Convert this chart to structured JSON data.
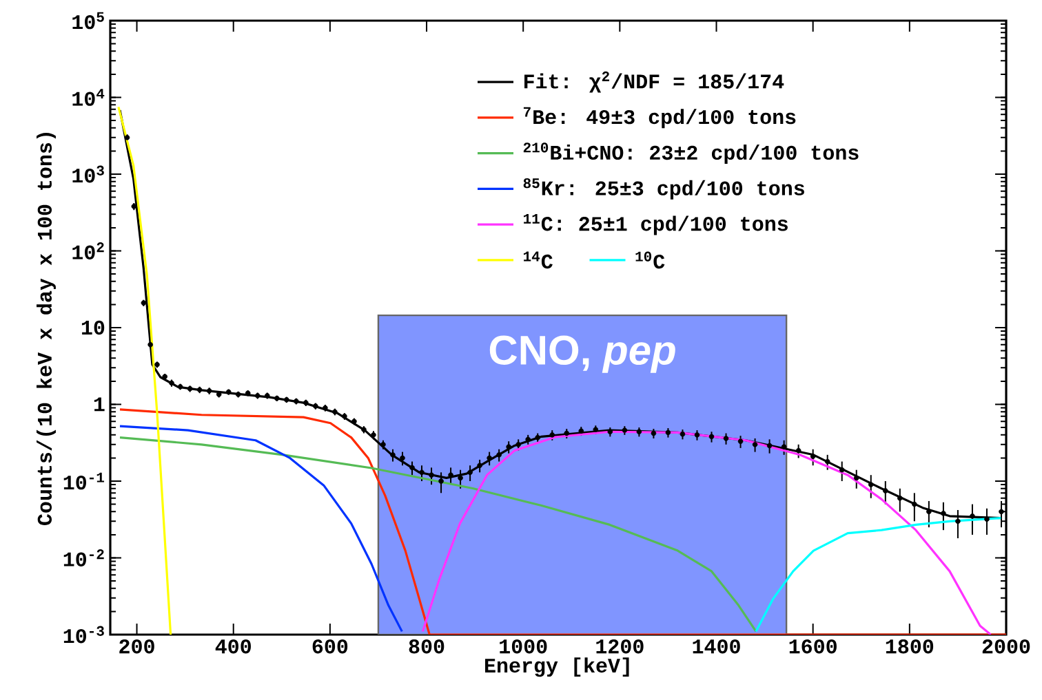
{
  "chart_data": {
    "type": "line",
    "xlabel": "Energy [keV]",
    "ylabel": "Counts/(10 keV x day x 100 tons)",
    "log": "y",
    "xlim": [
      145,
      2000
    ],
    "ylim": [
      0.001,
      100000
    ],
    "xticks": [
      200,
      400,
      600,
      800,
      1000,
      1200,
      1400,
      1600,
      1800,
      2000
    ],
    "yticks": [
      {
        "value": 0.001,
        "label": "10$^{-3}$"
      },
      {
        "value": 0.01,
        "label": "10$^{-2}$"
      },
      {
        "value": 0.1,
        "label": "10$^{-1}$"
      },
      1,
      10,
      {
        "value": 100,
        "label": "10$^{2}$"
      },
      {
        "value": 1000,
        "label": "10$^{3}$"
      },
      {
        "value": 10000,
        "label": "10$^{4}$"
      },
      {
        "value": 100000,
        "label": "10$^{5}$"
      }
    ],
    "legend": "top right",
    "grid": false,
    "bands": [
      {
        "axis": "x",
        "from": 700,
        "to": 1545,
        "label": "CNO, *pep*",
        "color": "#8095ff"
      }
    ],
    "series": [
      {
        "type": "scatter",
        "color": "#000000",
        "x": [
          180,
          194,
          214,
          228,
          242,
          258,
          272,
          290,
          310,
          330,
          350,
          370,
          390,
          410,
          430,
          450,
          470,
          490,
          510,
          530,
          550,
          570,
          590,
          610,
          630,
          650,
          670,
          690,
          710,
          730,
          750,
          770,
          790,
          810,
          830,
          850,
          870,
          890,
          910,
          930,
          950,
          970,
          990,
          1010,
          1030,
          1060,
          1090,
          1120,
          1150,
          1180,
          1210,
          1240,
          1270,
          1300,
          1330,
          1360,
          1390,
          1420,
          1450,
          1480,
          1510,
          1540,
          1570,
          1600,
          1630,
          1660,
          1690,
          1720,
          1750,
          1780,
          1810,
          1840,
          1870,
          1900,
          1930,
          1960,
          1990
        ],
        "values": [
          3000,
          380,
          21,
          6.0,
          3.3,
          2.3,
          1.9,
          1.7,
          1.6,
          1.55,
          1.5,
          1.35,
          1.45,
          1.35,
          1.4,
          1.3,
          1.3,
          1.2,
          1.15,
          1.1,
          1.05,
          0.95,
          0.9,
          0.8,
          0.7,
          0.6,
          0.47,
          0.4,
          0.3,
          0.22,
          0.2,
          0.15,
          0.13,
          0.12,
          0.1,
          0.12,
          0.11,
          0.13,
          0.16,
          0.2,
          0.22,
          0.28,
          0.3,
          0.35,
          0.37,
          0.4,
          0.42,
          0.45,
          0.47,
          0.44,
          0.46,
          0.44,
          0.42,
          0.43,
          0.41,
          0.4,
          0.38,
          0.36,
          0.33,
          0.3,
          0.29,
          0.28,
          0.25,
          0.21,
          0.18,
          0.14,
          0.11,
          0.09,
          0.075,
          0.06,
          0.05,
          0.04,
          0.038,
          0.03,
          0.035,
          0.032,
          0.04
        ],
        "errors": [
          300,
          40,
          2,
          0.6,
          0.3,
          0.2,
          0.2,
          0.15,
          0.15,
          0.15,
          0.15,
          0.12,
          0.12,
          0.12,
          0.12,
          0.12,
          0.12,
          0.1,
          0.1,
          0.1,
          0.1,
          0.09,
          0.09,
          0.08,
          0.07,
          0.06,
          0.05,
          0.05,
          0.04,
          0.04,
          0.04,
          0.03,
          0.03,
          0.03,
          0.03,
          0.03,
          0.03,
          0.03,
          0.03,
          0.04,
          0.04,
          0.05,
          0.05,
          0.05,
          0.05,
          0.06,
          0.06,
          0.06,
          0.06,
          0.06,
          0.06,
          0.06,
          0.06,
          0.06,
          0.06,
          0.06,
          0.06,
          0.06,
          0.06,
          0.06,
          0.06,
          0.06,
          0.05,
          0.05,
          0.04,
          0.04,
          0.03,
          0.03,
          0.025,
          0.02,
          0.02,
          0.015,
          0.015,
          0.012,
          0.015,
          0.012,
          0.015
        ]
      },
      {
        "name": "Fit: χ$^{2}$/NDF = 185/174",
        "color": "#000000",
        "x": [
          165,
          193,
          214,
          232,
          249,
          285,
          334,
          475,
          545,
          615,
          672,
          728,
          785,
          841,
          883,
          925,
          982,
          1038,
          1179,
          1320,
          1461,
          1601,
          1742,
          1827,
          1883,
          1989
        ],
        "values": [
          6800,
          870,
          59,
          3.3,
          2.26,
          1.69,
          1.53,
          1.24,
          1.05,
          0.77,
          0.46,
          0.22,
          0.13,
          0.11,
          0.125,
          0.18,
          0.29,
          0.38,
          0.46,
          0.43,
          0.34,
          0.22,
          0.08,
          0.045,
          0.035,
          0.033
        ]
      },
      {
        "name": "$^{7}$Be: 49±3 cpd/100 tons",
        "color": "#ff2a00",
        "x": [
          165,
          334,
          545,
          601,
          644,
          679,
          714,
          756,
          785,
          806,
          2000
        ],
        "values": [
          0.86,
          0.73,
          0.68,
          0.57,
          0.37,
          0.2,
          0.065,
          0.0124,
          0.0029,
          0.001,
          0.001
        ]
      },
      {
        "name": "$^{210}$Bi+CNO: 23±2 cpd/100 tons",
        "color": "#55bb55",
        "x": [
          165,
          334,
          503,
          686,
          897,
          1038,
          1179,
          1320,
          1390,
          1446,
          1482
        ],
        "values": [
          0.37,
          0.3,
          0.22,
          0.148,
          0.08,
          0.048,
          0.027,
          0.0124,
          0.0067,
          0.0024,
          0.0011
        ]
      },
      {
        "name": "$^{85}$Kr: 25±3 cpd/100 tons",
        "color": "#0033ff",
        "x": [
          165,
          306,
          446,
          517,
          587,
          644,
          686,
          721,
          749
        ],
        "values": [
          0.52,
          0.46,
          0.34,
          0.2,
          0.088,
          0.028,
          0.0083,
          0.0024,
          0.0011
        ]
      },
      {
        "name": "$^{11}$C: 25±1 cpd/100 tons",
        "color": "#ff33ff",
        "x": [
          792,
          827,
          869,
          925,
          982,
          1066,
          1179,
          1320,
          1461,
          1573,
          1672,
          1742,
          1813,
          1883,
          1946,
          1968
        ],
        "values": [
          0.0011,
          0.0054,
          0.028,
          0.12,
          0.25,
          0.375,
          0.44,
          0.43,
          0.34,
          0.22,
          0.12,
          0.058,
          0.023,
          0.0067,
          0.0013,
          0.001
        ]
      },
      {
        "name": "$^{14}$C",
        "color": "#ffff00",
        "x": [
          162,
          193,
          221,
          242,
          256,
          270
        ],
        "values": [
          7500,
          1300,
          48,
          0.77,
          0.028,
          0.001
        ]
      },
      {
        "name": "$^{10}$C",
        "color": "#00ffff",
        "x": [
          1482,
          1517,
          1559,
          1601,
          1672,
          1742,
          1813,
          1883,
          1989
        ],
        "values": [
          0.0011,
          0.0029,
          0.0067,
          0.0124,
          0.021,
          0.023,
          0.027,
          0.03,
          0.033
        ]
      }
    ]
  }
}
